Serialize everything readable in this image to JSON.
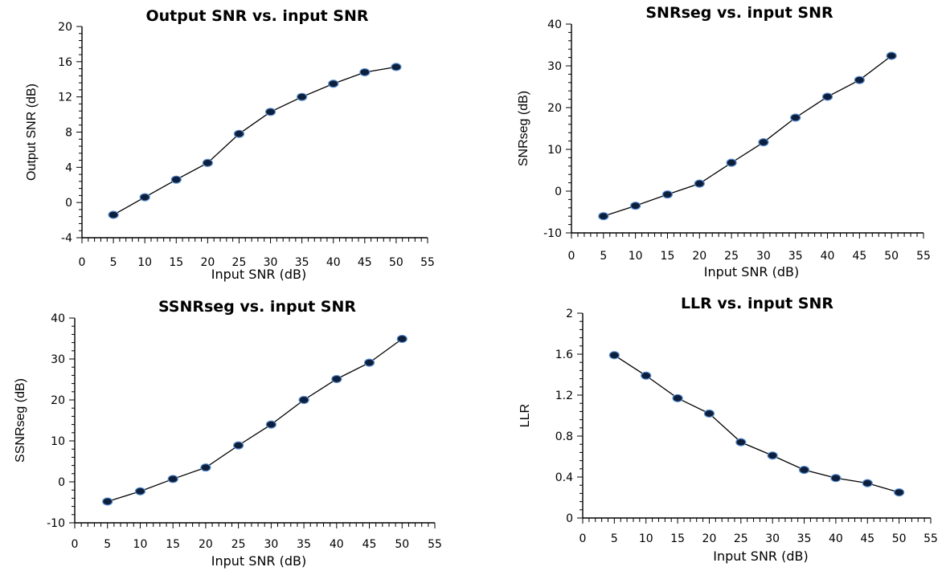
{
  "chart_data": [
    {
      "type": "line",
      "title": "Output SNR vs. input SNR",
      "xlabel": "Input SNR (dB)",
      "ylabel": "Output SNR (dB)",
      "xlim": [
        0,
        55
      ],
      "ylim": [
        -4,
        20
      ],
      "xticks": [
        "0",
        "5",
        "10",
        "15",
        "20",
        "25",
        "30",
        "35",
        "40",
        "45",
        "50",
        "55"
      ],
      "yticks": [
        "-4",
        "0",
        "4",
        "8",
        "12",
        "16",
        "20"
      ],
      "grid": false,
      "x": [
        5,
        10,
        15,
        20,
        25,
        30,
        35,
        40,
        45,
        50
      ],
      "y": [
        -1.4,
        0.6,
        2.6,
        4.5,
        7.8,
        10.3,
        12.0,
        13.5,
        14.8,
        15.4
      ]
    },
    {
      "type": "line",
      "title": "SNRseg vs. input SNR",
      "xlabel": "Input SNR (dB)",
      "ylabel": "SNRseg (dB)",
      "xlim": [
        0,
        55
      ],
      "ylim": [
        -10,
        40
      ],
      "xticks": [
        "0",
        "5",
        "10",
        "15",
        "20",
        "25",
        "30",
        "35",
        "40",
        "45",
        "50",
        "55"
      ],
      "yticks": [
        "-10",
        "0",
        "10",
        "20",
        "30",
        "40"
      ],
      "grid": false,
      "x": [
        5,
        10,
        15,
        20,
        25,
        30,
        35,
        40,
        45,
        50
      ],
      "y": [
        -6.0,
        -3.5,
        -0.8,
        1.8,
        6.8,
        11.7,
        17.6,
        22.6,
        26.6,
        32.4
      ]
    },
    {
      "type": "line",
      "title": "SSNRseg vs. input SNR",
      "xlabel": "Input SNR (dB)",
      "ylabel": "SSNRseg (dB)",
      "xlim": [
        0,
        55
      ],
      "ylim": [
        -10,
        40
      ],
      "xticks": [
        "0",
        "5",
        "10",
        "15",
        "20",
        "25",
        "30",
        "35",
        "40",
        "45",
        "50",
        "55"
      ],
      "yticks": [
        "-10",
        "0",
        "10",
        "20",
        "30",
        "40"
      ],
      "grid": false,
      "x": [
        5,
        10,
        15,
        20,
        25,
        30,
        35,
        40,
        45,
        50
      ],
      "y": [
        -4.8,
        -2.3,
        0.7,
        3.5,
        8.9,
        14.0,
        20.0,
        25.1,
        29.1,
        34.9
      ]
    },
    {
      "type": "line",
      "title": "LLR vs. input SNR",
      "xlabel": "Input SNR (dB)",
      "ylabel": "LLR",
      "xlim": [
        0,
        55
      ],
      "ylim": [
        0,
        2
      ],
      "xticks": [
        "0",
        "5",
        "10",
        "15",
        "20",
        "25",
        "30",
        "35",
        "40",
        "45",
        "50",
        "55"
      ],
      "yticks": [
        "0",
        "0.4",
        "0.8",
        "1.2",
        "1.6",
        "2"
      ],
      "grid": false,
      "x": [
        5,
        10,
        15,
        20,
        25,
        30,
        35,
        40,
        45,
        50
      ],
      "y": [
        1.59,
        1.39,
        1.17,
        1.02,
        0.74,
        0.61,
        0.47,
        0.39,
        0.34,
        0.25
      ]
    }
  ]
}
